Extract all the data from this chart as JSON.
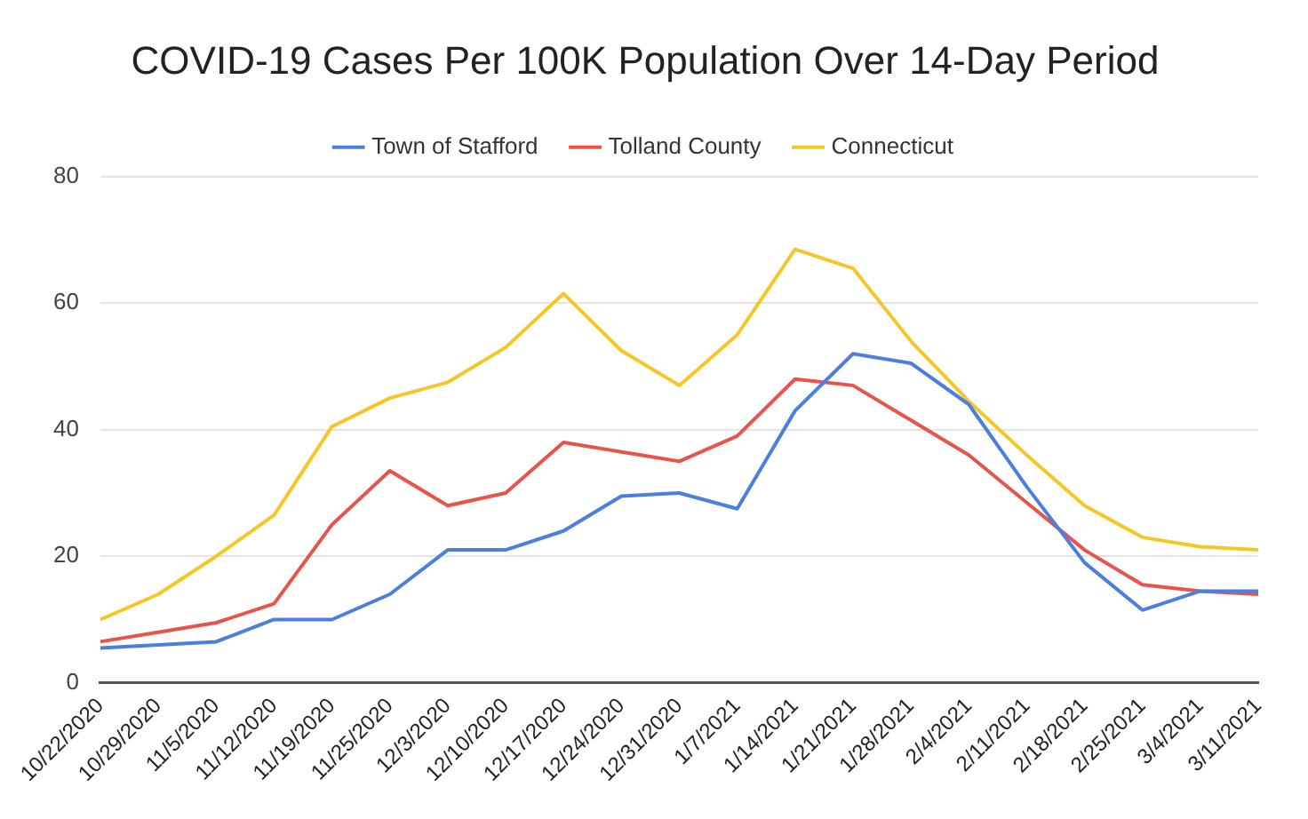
{
  "chart_data": {
    "type": "line",
    "title": "COVID-19 Cases Per 100K Population Over 14-Day Period",
    "categories": [
      "10/22/2020",
      "10/29/2020",
      "11/5/2020",
      "11/12/2020",
      "11/19/2020",
      "11/25/2020",
      "12/3/2020",
      "12/10/2020",
      "12/17/2020",
      "12/24/2020",
      "12/31/2020",
      "1/7/2021",
      "1/14/2021",
      "1/21/2021",
      "1/28/2021",
      "2/4/2021",
      "2/11/2021",
      "2/18/2021",
      "2/25/2021",
      "3/4/2021",
      "3/11/2021"
    ],
    "series": [
      {
        "name": "Town of Stafford",
        "color": "#4a7fe0",
        "values": [
          5.5,
          6,
          6.5,
          10,
          10,
          14,
          21,
          21,
          24,
          29.5,
          30,
          27.5,
          43,
          52,
          50.5,
          44,
          31,
          19,
          11.5,
          14.5,
          14.5
        ]
      },
      {
        "name": "Tolland County",
        "color": "#e8534a",
        "values": [
          6.5,
          8,
          9.5,
          12.5,
          25,
          33.5,
          28,
          30,
          38,
          36.5,
          35,
          39,
          48,
          47,
          41.5,
          36,
          28.5,
          21,
          15.5,
          14.5,
          14
        ]
      },
      {
        "name": "Connecticut",
        "color": "#f6c624",
        "values": [
          10,
          14,
          20,
          26.5,
          40.5,
          45,
          47.5,
          53,
          61.5,
          52.5,
          47,
          55,
          68.5,
          65.5,
          54,
          44.5,
          36,
          28,
          23,
          21.5,
          21
        ]
      }
    ],
    "ylim": [
      0,
      80
    ],
    "yticks": [
      0,
      20,
      40,
      60,
      80
    ],
    "grid": "y",
    "legend": "top",
    "marker": "none",
    "line_style": "solid"
  }
}
